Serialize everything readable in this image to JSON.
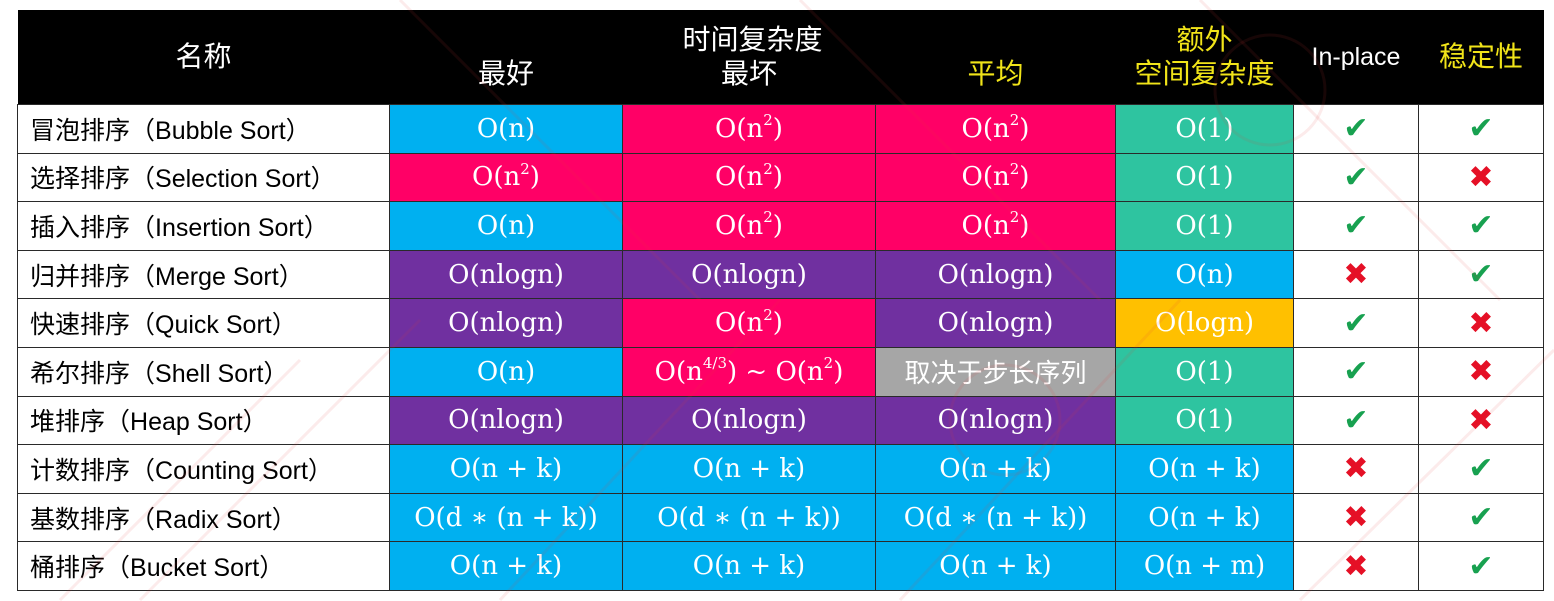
{
  "colors": {
    "blue": "#00b0f0",
    "pink": "#ff0066",
    "purple": "#7030a0",
    "teal": "#2ec4a0",
    "orange": "#ffc000",
    "gray": "#a6a6a6",
    "check": "#18a150",
    "cross": "#e51026",
    "header_gold": "#f1e419"
  },
  "header": {
    "name": "名称",
    "time_complexity": "时间复杂度",
    "best": "最好",
    "worst": "最坏",
    "average": "平均",
    "extra_space_line1": "额外",
    "extra_space_line2": "空间复杂度",
    "in_place": "In-place",
    "stable": "稳定性"
  },
  "rows": [
    {
      "name_zh": "冒泡排序（",
      "name_en": "Bubble Sort",
      "name_close": "）",
      "best": {
        "base": "O(n)",
        "color": "blue"
      },
      "worst": {
        "base": "O(n",
        "sup": "2",
        "tail": ")",
        "color": "pink"
      },
      "average": {
        "base": "O(n",
        "sup": "2",
        "tail": ")",
        "color": "pink"
      },
      "space": {
        "base": "O(1)",
        "color": "teal"
      },
      "in_place": "check",
      "stable": "check"
    },
    {
      "name_zh": "选择排序（",
      "name_en": "Selection Sort",
      "name_close": "）",
      "best": {
        "base": "O(n",
        "sup": "2",
        "tail": ")",
        "color": "pink"
      },
      "worst": {
        "base": "O(n",
        "sup": "2",
        "tail": ")",
        "color": "pink"
      },
      "average": {
        "base": "O(n",
        "sup": "2",
        "tail": ")",
        "color": "pink"
      },
      "space": {
        "base": "O(1)",
        "color": "teal"
      },
      "in_place": "check",
      "stable": "cross"
    },
    {
      "name_zh": "插入排序（",
      "name_en": "Insertion Sort",
      "name_close": "）",
      "best": {
        "base": "O(n)",
        "color": "blue"
      },
      "worst": {
        "base": "O(n",
        "sup": "2",
        "tail": ")",
        "color": "pink"
      },
      "average": {
        "base": "O(n",
        "sup": "2",
        "tail": ")",
        "color": "pink"
      },
      "space": {
        "base": "O(1)",
        "color": "teal"
      },
      "in_place": "check",
      "stable": "check"
    },
    {
      "name_zh": "归并排序（",
      "name_en": "Merge Sort",
      "name_close": "）",
      "best": {
        "base": "O(nlogn)",
        "color": "purple"
      },
      "worst": {
        "base": "O(nlogn)",
        "color": "purple"
      },
      "average": {
        "base": "O(nlogn)",
        "color": "purple"
      },
      "space": {
        "base": "O(n)",
        "color": "blue"
      },
      "in_place": "cross",
      "stable": "check"
    },
    {
      "name_zh": "快速排序（",
      "name_en": "Quick Sort",
      "name_close": "）",
      "best": {
        "base": "O(nlogn)",
        "color": "purple"
      },
      "worst": {
        "base": "O(n",
        "sup": "2",
        "tail": ")",
        "color": "pink"
      },
      "average": {
        "base": "O(nlogn)",
        "color": "purple"
      },
      "space": {
        "base": "O(logn)",
        "color": "orange"
      },
      "in_place": "check",
      "stable": "cross"
    },
    {
      "name_zh": "希尔排序（",
      "name_en": "Shell Sort",
      "name_close": "）",
      "best": {
        "base": "O(n)",
        "color": "blue"
      },
      "worst": {
        "base": "O(n",
        "sup": "4/3",
        "tail": ") ~ O(n",
        "sup2": "2",
        "tail2": ")",
        "color": "pink"
      },
      "average": {
        "base": "取决于步长序列",
        "color": "gray",
        "zh": true
      },
      "space": {
        "base": "O(1)",
        "color": "teal"
      },
      "in_place": "check",
      "stable": "cross"
    },
    {
      "name_zh": "堆排序（",
      "name_en": "Heap Sort",
      "name_close": "）",
      "best": {
        "base": "O(nlogn)",
        "color": "purple"
      },
      "worst": {
        "base": "O(nlogn)",
        "color": "purple"
      },
      "average": {
        "base": "O(nlogn)",
        "color": "purple"
      },
      "space": {
        "base": "O(1)",
        "color": "teal"
      },
      "in_place": "check",
      "stable": "cross"
    },
    {
      "name_zh": "计数排序（",
      "name_en": "Counting Sort",
      "name_close": "）",
      "best": {
        "base": "O(n + k)",
        "color": "blue"
      },
      "worst": {
        "base": "O(n + k)",
        "color": "blue"
      },
      "average": {
        "base": "O(n + k)",
        "color": "blue"
      },
      "space": {
        "base": "O(n + k)",
        "color": "blue"
      },
      "in_place": "cross",
      "stable": "check"
    },
    {
      "name_zh": "基数排序（",
      "name_en": "Radix Sort",
      "name_close": "）",
      "best": {
        "base": "O(d ∗ (n + k))",
        "color": "blue"
      },
      "worst": {
        "base": "O(d ∗ (n + k))",
        "color": "blue"
      },
      "average": {
        "base": "O(d ∗ (n + k))",
        "color": "blue"
      },
      "space": {
        "base": "O(n + k)",
        "color": "blue"
      },
      "in_place": "cross",
      "stable": "check"
    },
    {
      "name_zh": "桶排序（",
      "name_en": "Bucket Sort",
      "name_close": "）",
      "best": {
        "base": "O(n + k)",
        "color": "blue"
      },
      "worst": {
        "base": "O(n + k)",
        "color": "blue"
      },
      "average": {
        "base": "O(n + k)",
        "color": "blue"
      },
      "space": {
        "base": "O(n + m)",
        "color": "blue"
      },
      "in_place": "cross",
      "stable": "check"
    }
  ],
  "marks": {
    "check": "✔",
    "cross": "✖"
  }
}
